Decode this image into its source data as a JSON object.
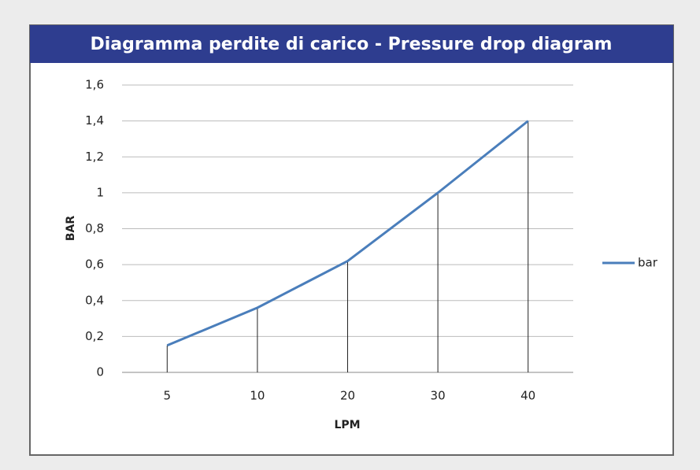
{
  "chart_data": {
    "type": "line",
    "title": "Diagramma perdite di carico - Pressure drop diagram",
    "x_label": "LPM",
    "y_label": "BAR",
    "categories": [
      "5",
      "10",
      "20",
      "30",
      "40"
    ],
    "series": [
      {
        "name": "bar",
        "color": "#4a7ebb",
        "values": [
          0.15,
          0.36,
          0.62,
          1.0,
          1.4
        ]
      }
    ],
    "ylim": [
      0,
      1.6
    ],
    "yticks": [
      0,
      {
        "value": 0.2,
        "label": "0,2"
      },
      {
        "value": 0.4,
        "label": "0,4"
      },
      {
        "value": 0.6,
        "label": "0,6"
      },
      {
        "value": 0.8,
        "label": "0,8"
      },
      1,
      {
        "value": 1.2,
        "label": "1,2"
      },
      {
        "value": 1.4,
        "label": "1,4"
      },
      {
        "value": 1.6,
        "label": "1,6"
      }
    ],
    "grid": true,
    "legend": "right"
  }
}
